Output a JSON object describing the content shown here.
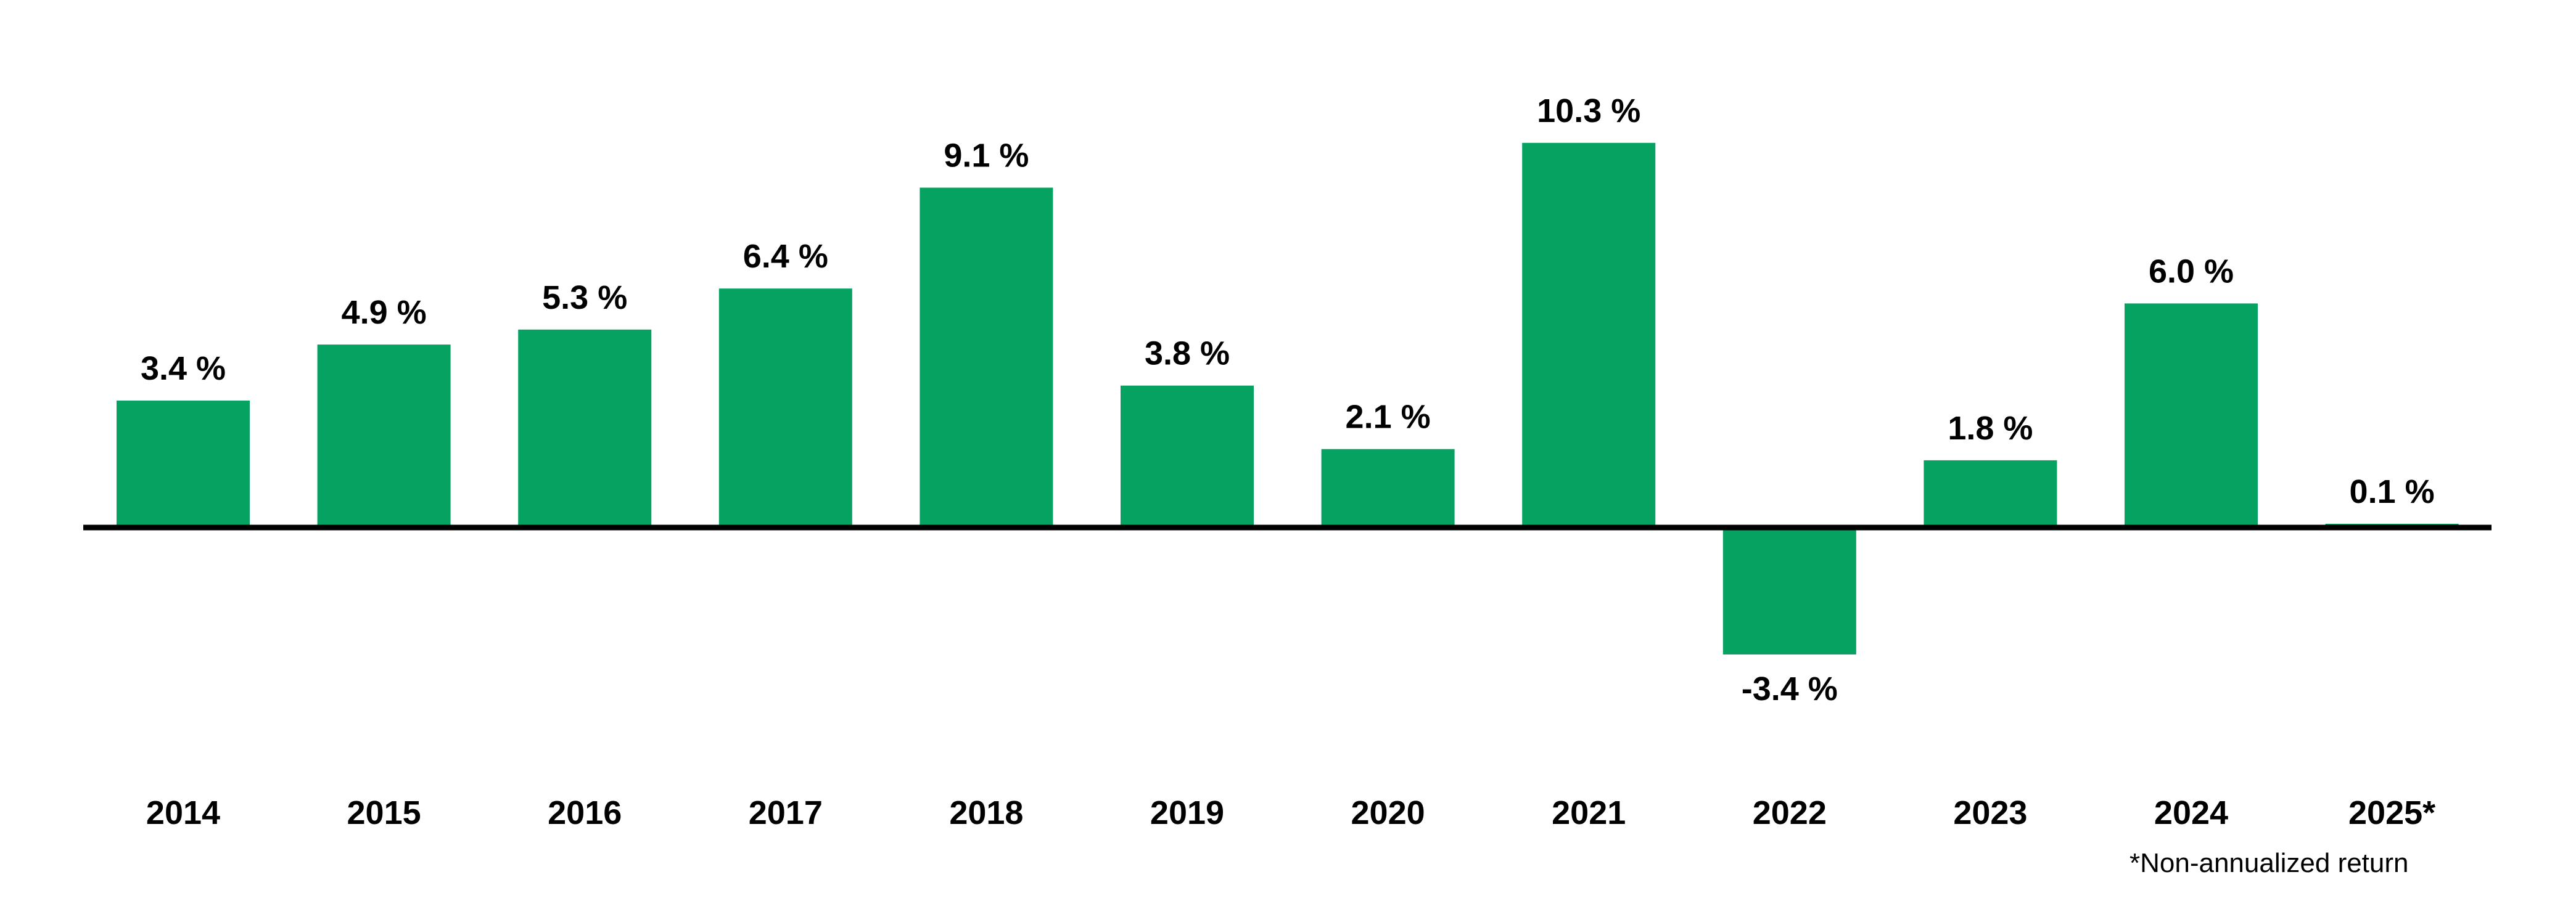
{
  "chart_data": {
    "type": "bar",
    "categories": [
      "2014",
      "2015",
      "2016",
      "2017",
      "2018",
      "2019",
      "2020",
      "2021",
      "2022",
      "2023",
      "2024",
      "2025*"
    ],
    "values": [
      3.4,
      4.9,
      5.3,
      6.4,
      9.1,
      3.8,
      2.1,
      10.3,
      -3.4,
      1.8,
      6.0,
      0.1
    ],
    "value_labels": [
      "3.4 %",
      "4.9 %",
      "5.3 %",
      "6.4 %",
      "9.1 %",
      "3.8 %",
      "2.1 %",
      "10.3 %",
      "-3.4 %",
      "1.8 %",
      "6.0 %",
      "0.1 %"
    ],
    "title": "",
    "xlabel": "",
    "ylabel": "",
    "ylim": [
      -5.5,
      11.5
    ],
    "grid": false,
    "legend": "none",
    "colors": {
      "bar": "#06A261",
      "baseline": "#000000",
      "text": "#000000"
    }
  },
  "footnote": "*Non-annualized return"
}
